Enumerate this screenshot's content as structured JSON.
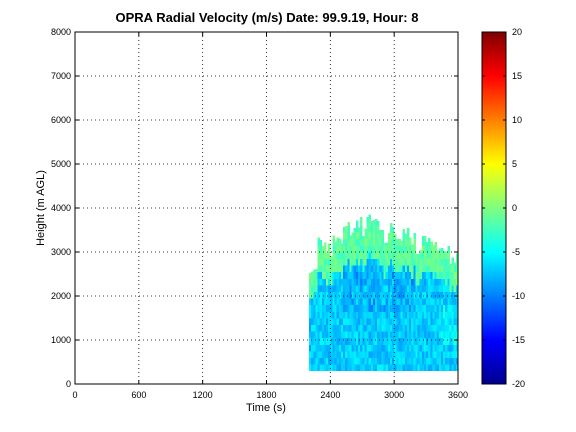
{
  "chart_data": {
    "type": "heatmap",
    "title": "OPRA Radial Velocity (m/s)  Date: 99.9.19, Hour: 8",
    "xlabel": "Time (s)",
    "ylabel": "Height (m AGL)",
    "xlim": [
      0,
      3600
    ],
    "ylim": [
      0,
      8000
    ],
    "xticks": [
      "0",
      "600",
      "1200",
      "1800",
      "2400",
      "3000",
      "3600"
    ],
    "yticks": [
      "0",
      "1000",
      "2000",
      "3000",
      "4000",
      "5000",
      "6000",
      "7000",
      "8000"
    ],
    "grid": true,
    "colorbar": {
      "clim": [
        -20,
        20
      ],
      "ticks": [
        "20",
        "15",
        "10",
        "5",
        "0",
        "-5",
        "-10",
        "-15",
        "-20"
      ],
      "colormap": "jet"
    },
    "data_region": {
      "time_start": 2200,
      "time_end": 3600,
      "height_min": 300,
      "top_height_profile": [
        [
          2200,
          2600
        ],
        [
          2260,
          3250
        ],
        [
          2340,
          3050
        ],
        [
          2400,
          3300
        ],
        [
          2450,
          3200
        ],
        [
          2500,
          3550
        ],
        [
          2560,
          3400
        ],
        [
          2620,
          3650
        ],
        [
          2680,
          3500
        ],
        [
          2720,
          3750
        ],
        [
          2800,
          3600
        ],
        [
          2880,
          3300
        ],
        [
          2940,
          3550
        ],
        [
          3000,
          3200
        ],
        [
          3060,
          3450
        ],
        [
          3120,
          3300
        ],
        [
          3180,
          3050
        ],
        [
          3240,
          3350
        ],
        [
          3320,
          3250
        ],
        [
          3380,
          3050
        ],
        [
          3440,
          3150
        ],
        [
          3500,
          2800
        ],
        [
          3560,
          3000
        ],
        [
          3600,
          2500
        ]
      ],
      "typical_velocity_low": -7,
      "typical_velocity_upper_edge": -2
    }
  }
}
